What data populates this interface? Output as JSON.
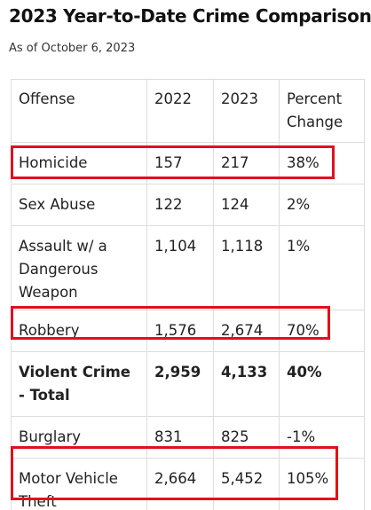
{
  "header": {
    "title": "2023 Year-to-Date Crime Comparison*",
    "subtitle": "As of October 6, 2023"
  },
  "table": {
    "columns": [
      "Offense",
      "2022",
      "2023",
      "Percent Change"
    ],
    "rows": [
      {
        "offense": "Homicide",
        "y2022": "157",
        "y2023": "217",
        "change": "38%",
        "highlighted": true,
        "bold": false
      },
      {
        "offense": "Sex Abuse",
        "y2022": "122",
        "y2023": "124",
        "change": "2%",
        "highlighted": false,
        "bold": false
      },
      {
        "offense": "Assault w/ a Dangerous Weapon",
        "y2022": "1,104",
        "y2023": "1,118",
        "change": "1%",
        "highlighted": false,
        "bold": false
      },
      {
        "offense": "Robbery",
        "y2022": "1,576",
        "y2023": "2,674",
        "change": "70%",
        "highlighted": true,
        "bold": false
      },
      {
        "offense": "Violent Crime - Total",
        "y2022": "2,959",
        "y2023": "4,133",
        "change": "40%",
        "highlighted": false,
        "bold": true
      },
      {
        "offense": "Burglary",
        "y2022": "831",
        "y2023": "825",
        "change": "-1%",
        "highlighted": false,
        "bold": false
      },
      {
        "offense": "Motor Vehicle Theft",
        "y2022": "2,664",
        "y2023": "5,452",
        "change": "105%",
        "highlighted": true,
        "bold": false
      }
    ]
  },
  "colors": {
    "highlight_border": "#e0101f",
    "table_border": "#dddddd",
    "text": "#222222"
  }
}
